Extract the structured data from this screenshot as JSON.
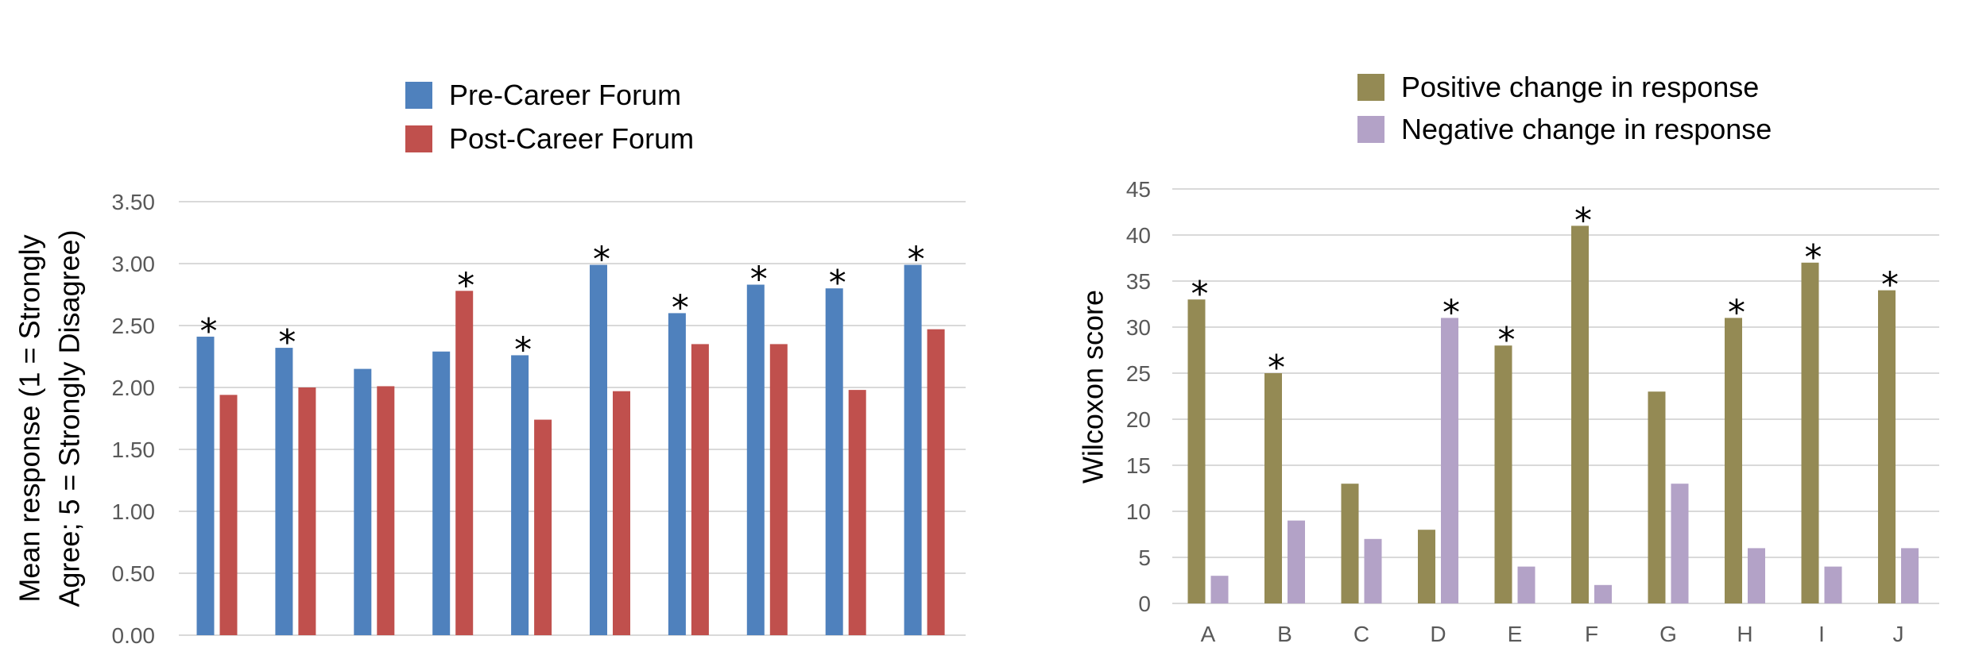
{
  "chart_data": [
    {
      "type": "bar",
      "title": "",
      "xlabel": "",
      "ylabel": "Mean response (1 = Strongly Agree; 5 = Strongly Disagree)",
      "ylabel_lines": [
        "Mean response (1 = Strongly",
        "Agree; 5 = Strongly Disagree)"
      ],
      "ylim": [
        0,
        3.5
      ],
      "yticks": [
        "0.00",
        "0.50",
        "1.00",
        "1.50",
        "2.00",
        "2.50",
        "3.00",
        "3.50"
      ],
      "grid": true,
      "legend_position": "top-center",
      "categories": [
        "",
        "",
        "",
        "",
        "",
        "",
        "",
        "",
        "",
        ""
      ],
      "series": [
        {
          "name": "Pre-Career Forum",
          "color": "#4f81bd",
          "values": [
            2.41,
            2.32,
            2.15,
            2.29,
            2.26,
            2.99,
            2.6,
            2.83,
            2.8,
            2.99
          ]
        },
        {
          "name": "Post-Career Forum",
          "color": "#c0504d",
          "values": [
            1.94,
            2.0,
            2.01,
            2.78,
            1.74,
            1.97,
            2.35,
            2.35,
            1.98,
            2.47
          ]
        }
      ],
      "significance": [
        true,
        true,
        false,
        true,
        true,
        true,
        true,
        true,
        true,
        true
      ],
      "significance_symbol": "*"
    },
    {
      "type": "bar",
      "title": "",
      "xlabel": "",
      "ylabel": "Wilcoxon score",
      "ylim": [
        0,
        45
      ],
      "yticks": [
        "0",
        "5",
        "10",
        "15",
        "20",
        "25",
        "30",
        "35",
        "40",
        "45"
      ],
      "grid": true,
      "legend_position": "top-center",
      "categories": [
        "A",
        "B",
        "C",
        "D",
        "E",
        "F",
        "G",
        "H",
        "I",
        "J"
      ],
      "series": [
        {
          "name": "Positive change in response",
          "color": "#948a54",
          "values": [
            33,
            25,
            13,
            8,
            28,
            41,
            23,
            31,
            37,
            34
          ]
        },
        {
          "name": "Negative change in response",
          "color": "#b3a2c7",
          "values": [
            3,
            9,
            7,
            31,
            4,
            2,
            13,
            6,
            4,
            6
          ]
        }
      ],
      "significance": [
        true,
        true,
        false,
        true,
        true,
        true,
        false,
        true,
        true,
        true
      ],
      "significance_symbol": "*"
    }
  ]
}
